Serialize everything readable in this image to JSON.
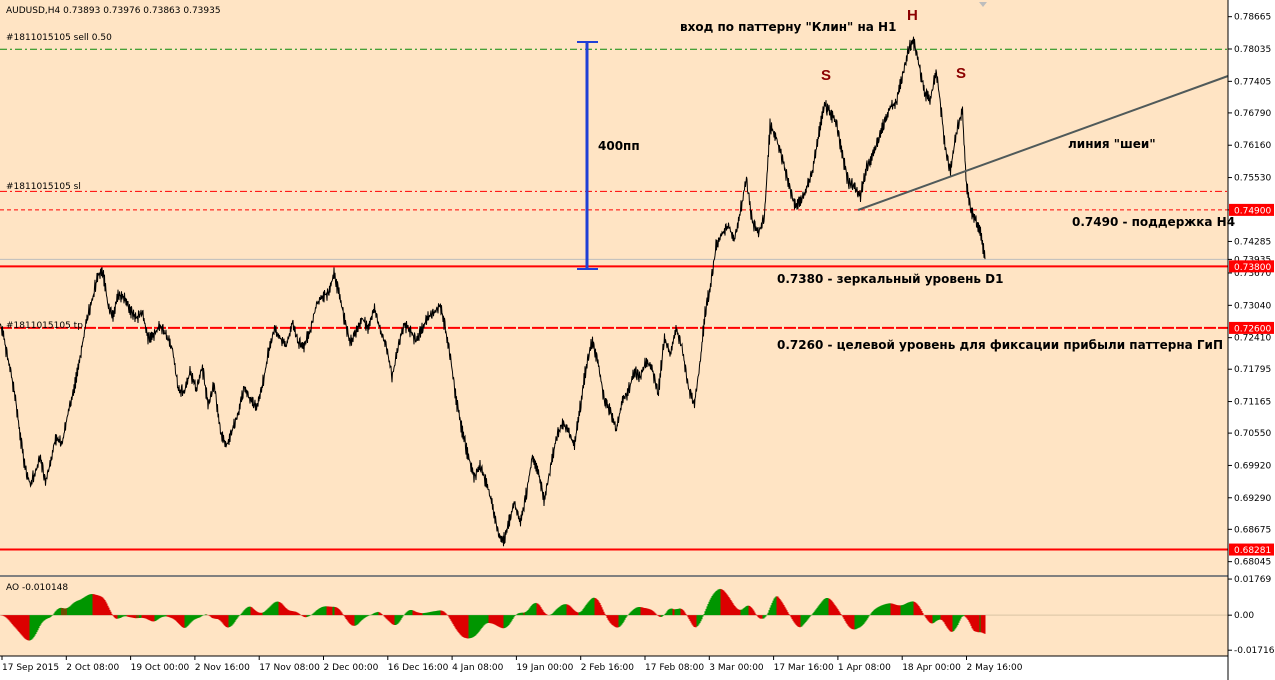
{
  "chart_data": {
    "type": "candlestick-line",
    "title": "AUDUSD,H4  0.73893 0.73976 0.73863 0.73935",
    "colors": {
      "background": "#ffe4c4",
      "price_line": "#000000",
      "level": "#ff0000",
      "grid": "#c8c8c8",
      "measure": "#1f3fd6",
      "neckline": "#505a5a",
      "ao_up": "#009600",
      "ao_down": "#dc0000"
    },
    "ylim": [
      0.67785,
      0.7899
    ],
    "y_ticks": [
      0.78665,
      0.78035,
      0.77405,
      0.7679,
      0.7616,
      0.7553,
      0.749,
      0.74285,
      0.73935,
      0.7367,
      0.7304,
      0.7241,
      0.71795,
      0.71165,
      0.7055,
      0.6992,
      0.6929,
      0.68675,
      0.68045
    ],
    "y_tick_labels": [
      "0.78665",
      "0.78035",
      "0.77405",
      "0.76790",
      "0.76160",
      "0.75530",
      "0.74900",
      "0.74285",
      "0.73935",
      "0.73670",
      "0.73040",
      "0.72410",
      "0.71795",
      "0.71165",
      "0.70550",
      "0.69920",
      "0.69290",
      "0.68675",
      "0.68045"
    ],
    "x_tick_labels": [
      "17 Sep 2015",
      "2 Oct 08:00",
      "19 Oct 00:00",
      "2 Nov 16:00",
      "17 Nov 08:00",
      "2 Dec 00:00",
      "16 Dec 16:00",
      "4 Jan 08:00",
      "19 Jan 00:00",
      "2 Feb 16:00",
      "17 Feb 08:00",
      "3 Mar 00:00",
      "17 Mar 16:00",
      "1 Apr 08:00",
      "18 Apr 00:00",
      "2 May 16:00"
    ],
    "price_path": [
      [
        0,
        0.7267
      ],
      [
        3,
        0.725
      ],
      [
        6,
        0.7215
      ],
      [
        10,
        0.718
      ],
      [
        15,
        0.7125
      ],
      [
        20,
        0.705
      ],
      [
        25,
        0.6985
      ],
      [
        30,
        0.6955
      ],
      [
        35,
        0.6978
      ],
      [
        40,
        0.701
      ],
      [
        45,
        0.696
      ],
      [
        50,
        0.6995
      ],
      [
        55,
        0.7045
      ],
      [
        62,
        0.7035
      ],
      [
        68,
        0.7098
      ],
      [
        74,
        0.714
      ],
      [
        80,
        0.7205
      ],
      [
        86,
        0.7272
      ],
      [
        92,
        0.7315
      ],
      [
        98,
        0.7365
      ],
      [
        103,
        0.7368
      ],
      [
        108,
        0.73
      ],
      [
        113,
        0.7285
      ],
      [
        118,
        0.7325
      ],
      [
        124,
        0.732
      ],
      [
        130,
        0.7295
      ],
      [
        136,
        0.728
      ],
      [
        142,
        0.729
      ],
      [
        148,
        0.724
      ],
      [
        154,
        0.7248
      ],
      [
        160,
        0.7265
      ],
      [
        166,
        0.7245
      ],
      [
        172,
        0.722
      ],
      [
        178,
        0.714
      ],
      [
        184,
        0.7135
      ],
      [
        190,
        0.7175
      ],
      [
        196,
        0.714
      ],
      [
        202,
        0.7185
      ],
      [
        208,
        0.711
      ],
      [
        214,
        0.715
      ],
      [
        220,
        0.706
      ],
      [
        226,
        0.703
      ],
      [
        232,
        0.706
      ],
      [
        238,
        0.7095
      ],
      [
        244,
        0.7145
      ],
      [
        250,
        0.712
      ],
      [
        256,
        0.7105
      ],
      [
        262,
        0.7145
      ],
      [
        268,
        0.721
      ],
      [
        274,
        0.7258
      ],
      [
        280,
        0.724
      ],
      [
        286,
        0.7225
      ],
      [
        292,
        0.727
      ],
      [
        298,
        0.7232
      ],
      [
        304,
        0.7225
      ],
      [
        310,
        0.7255
      ],
      [
        316,
        0.7305
      ],
      [
        322,
        0.7322
      ],
      [
        328,
        0.7328
      ],
      [
        334,
        0.7365
      ],
      [
        339,
        0.7325
      ],
      [
        344,
        0.728
      ],
      [
        350,
        0.723
      ],
      [
        356,
        0.7255
      ],
      [
        362,
        0.7278
      ],
      [
        368,
        0.726
      ],
      [
        374,
        0.73
      ],
      [
        380,
        0.7255
      ],
      [
        386,
        0.7225
      ],
      [
        392,
        0.7165
      ],
      [
        398,
        0.7225
      ],
      [
        404,
        0.7268
      ],
      [
        410,
        0.7255
      ],
      [
        416,
        0.7235
      ],
      [
        422,
        0.7258
      ],
      [
        428,
        0.7282
      ],
      [
        434,
        0.729
      ],
      [
        440,
        0.7305
      ],
      [
        444,
        0.727
      ],
      [
        450,
        0.7205
      ],
      [
        456,
        0.712
      ],
      [
        462,
        0.706
      ],
      [
        468,
        0.701
      ],
      [
        474,
        0.697
      ],
      [
        480,
        0.699
      ],
      [
        486,
        0.696
      ],
      [
        492,
        0.6915
      ],
      [
        498,
        0.686
      ],
      [
        503,
        0.6843
      ],
      [
        508,
        0.6875
      ],
      [
        514,
        0.692
      ],
      [
        520,
        0.688
      ],
      [
        526,
        0.6935
      ],
      [
        532,
        0.701
      ],
      [
        538,
        0.698
      ],
      [
        544,
        0.6925
      ],
      [
        550,
        0.6985
      ],
      [
        556,
        0.7045
      ],
      [
        562,
        0.7075
      ],
      [
        568,
        0.706
      ],
      [
        574,
        0.703
      ],
      [
        580,
        0.7105
      ],
      [
        586,
        0.7185
      ],
      [
        592,
        0.7235
      ],
      [
        598,
        0.719
      ],
      [
        604,
        0.712
      ],
      [
        610,
        0.71
      ],
      [
        616,
        0.706
      ],
      [
        622,
        0.712
      ],
      [
        628,
        0.7135
      ],
      [
        634,
        0.7175
      ],
      [
        640,
        0.7165
      ],
      [
        646,
        0.7195
      ],
      [
        652,
        0.718
      ],
      [
        658,
        0.713
      ],
      [
        664,
        0.724
      ],
      [
        670,
        0.721
      ],
      [
        676,
        0.7258
      ],
      [
        682,
        0.722
      ],
      [
        688,
        0.7145
      ],
      [
        694,
        0.711
      ],
      [
        700,
        0.7195
      ],
      [
        705,
        0.729
      ],
      [
        710,
        0.734
      ],
      [
        716,
        0.742
      ],
      [
        722,
        0.7445
      ],
      [
        728,
        0.746
      ],
      [
        734,
        0.7432
      ],
      [
        740,
        0.7485
      ],
      [
        746,
        0.755
      ],
      [
        752,
        0.7468
      ],
      [
        758,
        0.7445
      ],
      [
        764,
        0.7475
      ],
      [
        770,
        0.7655
      ],
      [
        776,
        0.763
      ],
      [
        782,
        0.759
      ],
      [
        788,
        0.7545
      ],
      [
        794,
        0.75
      ],
      [
        800,
        0.7505
      ],
      [
        806,
        0.753
      ],
      [
        812,
        0.7565
      ],
      [
        818,
        0.763
      ],
      [
        824,
        0.7695
      ],
      [
        830,
        0.768
      ],
      [
        836,
        0.766
      ],
      [
        842,
        0.76
      ],
      [
        848,
        0.7545
      ],
      [
        854,
        0.7535
      ],
      [
        860,
        0.7515
      ],
      [
        866,
        0.757
      ],
      [
        872,
        0.7595
      ],
      [
        878,
        0.7625
      ],
      [
        884,
        0.766
      ],
      [
        890,
        0.769
      ],
      [
        896,
        0.77
      ],
      [
        902,
        0.775
      ],
      [
        908,
        0.78
      ],
      [
        913,
        0.7822
      ],
      [
        918,
        0.778
      ],
      [
        924,
        0.772
      ],
      [
        930,
        0.7705
      ],
      [
        936,
        0.776
      ],
      [
        940,
        0.77
      ],
      [
        945,
        0.761
      ],
      [
        950,
        0.7565
      ],
      [
        956,
        0.764
      ],
      [
        962,
        0.7685
      ],
      [
        966,
        0.7545
      ],
      [
        970,
        0.7495
      ],
      [
        975,
        0.747
      ],
      [
        980,
        0.745
      ],
      [
        985,
        0.7394
      ]
    ],
    "ao_label": "AO -0.010148",
    "ao_ticks": [
      0.01769,
      0.0,
      -0.01716
    ],
    "ao_tick_labels": [
      "0.01769",
      "0.00",
      "-0.017162"
    ],
    "ao_ylim": [
      -0.02,
      0.0187
    ],
    "annotations": {
      "pattern_entry": "вход по паттерну \"Клин\" на H1",
      "head": "H",
      "shoulder_left": "S",
      "shoulder_right": "S",
      "measure": "400пп",
      "neckline": "линия \"шеи\"",
      "support": "0.7490 - поддержка H4",
      "mirror": "0.7380 - зеркальный уровень D1",
      "target": "0.7260 - целевой уровень для фиксации прибыли паттерна ГиП"
    },
    "orders": {
      "sell": "#1811015105 sell 0.50",
      "sl": "#1811015105 sl",
      "tp": "#1811015105 tp"
    },
    "levels": [
      {
        "name": "sell",
        "value": 0.7803,
        "style": "dash-dot",
        "color": "#0a8a0a",
        "label": "",
        "boxed": false
      },
      {
        "name": "sl",
        "value": 0.7526,
        "style": "dash-dot",
        "color": "#ff0000",
        "label": "",
        "boxed": false
      },
      {
        "name": "support-h4",
        "value": 0.749,
        "style": "dash",
        "color": "#ff0000",
        "label": "0.74900",
        "boxed": true
      },
      {
        "name": "current",
        "value": 0.73935,
        "style": "solid-thin",
        "color": "#bdbdbd",
        "label": "0.73935",
        "boxed": false
      },
      {
        "name": "mirror-d1",
        "value": 0.738,
        "style": "solid",
        "color": "#ff0000",
        "label": "0.73800",
        "boxed": true
      },
      {
        "name": "target-tp",
        "value": 0.726,
        "style": "solid-dash",
        "color": "#ff0000",
        "label": "0.72600",
        "boxed": true
      },
      {
        "name": "low",
        "value": 0.68281,
        "style": "solid",
        "color": "#ff0000",
        "label": "0.68281",
        "boxed": true
      }
    ]
  }
}
